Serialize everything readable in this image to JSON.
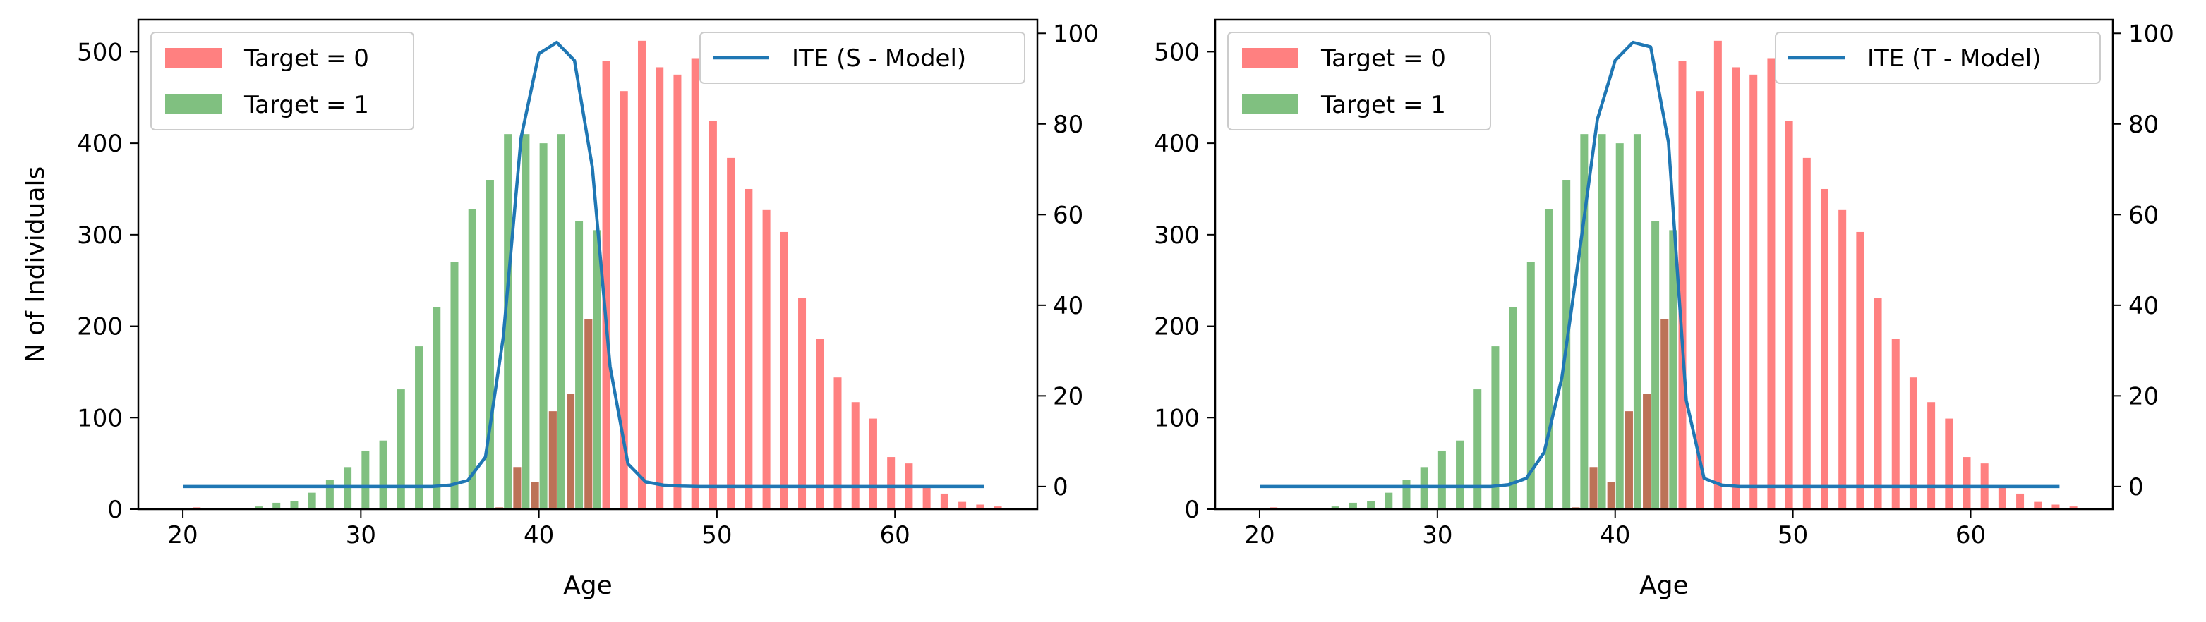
{
  "chart_data": [
    {
      "type": "bar+line",
      "xlabel": "Age",
      "ylabel": "N of Individuals",
      "xlim": [
        17.5,
        68
      ],
      "ylim_left": [
        0,
        535
      ],
      "ylim_right": [
        -5,
        103
      ],
      "xticks": [
        20,
        30,
        40,
        50,
        60
      ],
      "yticks_left": [
        0,
        100,
        200,
        300,
        400,
        500
      ],
      "yticks_right": [
        0,
        20,
        40,
        60,
        80,
        100
      ],
      "bar_legend_placement": "upper left",
      "line_legend_placement": "upper right",
      "colors": {
        "target0": "#ff8080",
        "target1": "#80c080",
        "ite": "#1f77b4"
      },
      "series": [
        {
          "name": "Target = 0",
          "kind": "bar",
          "x": [
            20,
            21,
            22,
            23,
            24,
            25,
            26,
            27,
            28,
            29,
            30,
            31,
            32,
            33,
            34,
            35,
            36,
            37,
            38,
            39,
            40,
            41,
            42,
            43,
            44,
            45,
            46,
            47,
            48,
            49,
            50,
            51,
            52,
            53,
            54,
            55,
            56,
            57,
            58,
            59,
            60,
            61,
            62,
            63,
            64,
            65,
            66
          ],
          "values": [
            0,
            2,
            0,
            0,
            0,
            0,
            0,
            0,
            0,
            0,
            0,
            0,
            0,
            0,
            0,
            0,
            0,
            0,
            2,
            46,
            30,
            107,
            126,
            208,
            490,
            457,
            512,
            483,
            475,
            493,
            424,
            384,
            350,
            327,
            303,
            231,
            186,
            144,
            117,
            99,
            57,
            50,
            26,
            17,
            8,
            5,
            3
          ]
        },
        {
          "name": "Target = 1",
          "kind": "bar",
          "x": [
            20,
            21,
            22,
            23,
            24,
            25,
            26,
            27,
            28,
            29,
            30,
            31,
            32,
            33,
            34,
            35,
            36,
            37,
            38,
            39,
            40,
            41,
            42,
            43,
            44,
            45,
            46,
            47,
            48,
            49,
            50,
            51,
            52,
            53,
            54,
            55,
            56,
            57,
            58,
            59,
            60,
            61,
            62,
            63,
            64,
            65,
            66
          ],
          "values": [
            0,
            0,
            0,
            0,
            3,
            7,
            9,
            18,
            32,
            46,
            64,
            75,
            131,
            178,
            221,
            270,
            328,
            360,
            410,
            410,
            400,
            410,
            315,
            305,
            0,
            0,
            0,
            0,
            0,
            0,
            0,
            0,
            0,
            0,
            0,
            0,
            0,
            0,
            0,
            0,
            0,
            0,
            0,
            0,
            0,
            0,
            0
          ]
        },
        {
          "name": "ITE (S - Model)",
          "kind": "line",
          "axis": "right",
          "x": [
            20,
            21,
            22,
            23,
            24,
            25,
            26,
            27,
            28,
            29,
            30,
            31,
            32,
            33,
            34,
            35,
            36,
            37,
            38,
            39,
            40,
            41,
            42,
            43,
            44,
            45,
            46,
            47,
            48,
            49,
            50,
            51,
            52,
            53,
            54,
            55,
            56,
            57,
            58,
            59,
            60,
            61,
            62,
            63,
            64,
            65
          ],
          "values": [
            0,
            0,
            0,
            0,
            0,
            0,
            0,
            0,
            0,
            0,
            0,
            0,
            0,
            0,
            0,
            0.3,
            1.3,
            6.5,
            33,
            77,
            95.5,
            98,
            94,
            70.5,
            26.5,
            5,
            1,
            0.3,
            0.1,
            0,
            0,
            0,
            0,
            0,
            0,
            0,
            0,
            0,
            0,
            0,
            0,
            0,
            0,
            0,
            0,
            0
          ]
        }
      ]
    },
    {
      "type": "bar+line",
      "xlabel": "Age",
      "ylabel": "",
      "xlim": [
        17.5,
        68
      ],
      "ylim_left": [
        0,
        535
      ],
      "ylim_right": [
        -5,
        103
      ],
      "xticks": [
        20,
        30,
        40,
        50,
        60
      ],
      "yticks_left": [
        0,
        100,
        200,
        300,
        400,
        500
      ],
      "yticks_right": [
        0,
        20,
        40,
        60,
        80,
        100
      ],
      "bar_legend_placement": "upper left",
      "line_legend_placement": "upper right",
      "colors": {
        "target0": "#ff8080",
        "target1": "#80c080",
        "ite": "#1f77b4"
      },
      "series": [
        {
          "name": "Target = 0",
          "kind": "bar",
          "x": [
            20,
            21,
            22,
            23,
            24,
            25,
            26,
            27,
            28,
            29,
            30,
            31,
            32,
            33,
            34,
            35,
            36,
            37,
            38,
            39,
            40,
            41,
            42,
            43,
            44,
            45,
            46,
            47,
            48,
            49,
            50,
            51,
            52,
            53,
            54,
            55,
            56,
            57,
            58,
            59,
            60,
            61,
            62,
            63,
            64,
            65,
            66
          ],
          "values": [
            0,
            2,
            0,
            0,
            0,
            0,
            0,
            0,
            0,
            0,
            0,
            0,
            0,
            0,
            0,
            0,
            0,
            0,
            2,
            46,
            30,
            107,
            126,
            208,
            490,
            457,
            512,
            483,
            475,
            493,
            424,
            384,
            350,
            327,
            303,
            231,
            186,
            144,
            117,
            99,
            57,
            50,
            26,
            17,
            8,
            5,
            3
          ]
        },
        {
          "name": "Target = 1",
          "kind": "bar",
          "x": [
            20,
            21,
            22,
            23,
            24,
            25,
            26,
            27,
            28,
            29,
            30,
            31,
            32,
            33,
            34,
            35,
            36,
            37,
            38,
            39,
            40,
            41,
            42,
            43,
            44,
            45,
            46,
            47,
            48,
            49,
            50,
            51,
            52,
            53,
            54,
            55,
            56,
            57,
            58,
            59,
            60,
            61,
            62,
            63,
            64,
            65,
            66
          ],
          "values": [
            0,
            0,
            0,
            0,
            3,
            7,
            9,
            18,
            32,
            46,
            64,
            75,
            131,
            178,
            221,
            270,
            328,
            360,
            410,
            410,
            400,
            410,
            315,
            305,
            0,
            0,
            0,
            0,
            0,
            0,
            0,
            0,
            0,
            0,
            0,
            0,
            0,
            0,
            0,
            0,
            0,
            0,
            0,
            0,
            0,
            0,
            0
          ]
        },
        {
          "name": "ITE (T - Model)",
          "kind": "line",
          "axis": "right",
          "x": [
            20,
            21,
            22,
            23,
            24,
            25,
            26,
            27,
            28,
            29,
            30,
            31,
            32,
            33,
            34,
            35,
            36,
            37,
            38,
            39,
            40,
            41,
            42,
            43,
            44,
            45,
            46,
            47,
            48,
            49,
            50,
            51,
            52,
            53,
            54,
            55,
            56,
            57,
            58,
            59,
            60,
            61,
            62,
            63,
            64,
            65
          ],
          "values": [
            0,
            0,
            0,
            0,
            0,
            0,
            0,
            0,
            0,
            0,
            0,
            0,
            0,
            0,
            0.4,
            1.8,
            7.5,
            24,
            52,
            81,
            94,
            98,
            97,
            76,
            19,
            1.8,
            0.3,
            0,
            0,
            0,
            0,
            0,
            0,
            0,
            0,
            0,
            0,
            0,
            0,
            0,
            0,
            0,
            0,
            0,
            0,
            0
          ]
        }
      ]
    }
  ]
}
